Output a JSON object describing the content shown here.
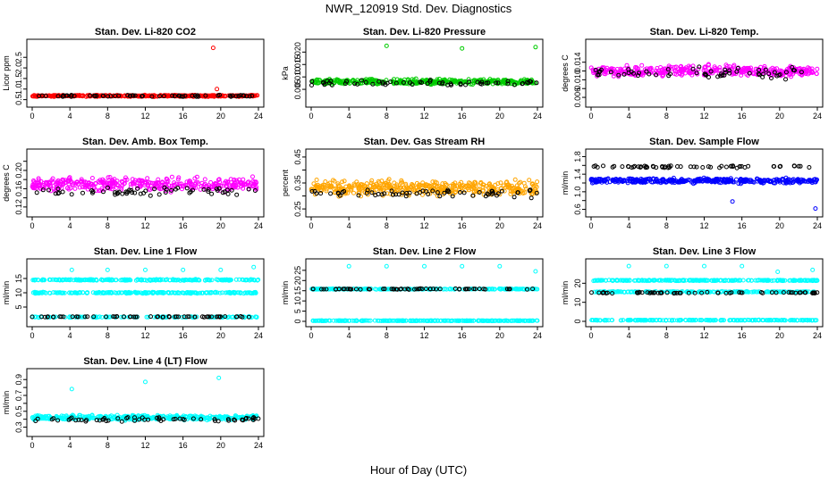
{
  "figure": {
    "title": "NWR_120919 Std. Dev. Diagnostics",
    "xlabel": "Hour of Day (UTC)"
  },
  "colors": {
    "red": "#ff0000",
    "green": "#00cc00",
    "magenta": "#ff00ff",
    "orange": "#ffa500",
    "blue": "#0000ff",
    "cyan": "#00ffff",
    "black": "#000000"
  },
  "chart_data": [
    {
      "type": "scatter",
      "title": "Stan. Dev. Li-820 CO2",
      "ylabel": "Licor ppm",
      "xlim": [
        0,
        24
      ],
      "ylim": [
        0.4,
        3.1
      ],
      "xticks": [
        0,
        4,
        8,
        12,
        16,
        20,
        24
      ],
      "yticks": [
        0.5,
        1.0,
        1.5,
        2.0,
        2.5
      ],
      "ytick_labels": [
        "0.5",
        "1.0",
        "1.5",
        "2.0",
        "2.5"
      ],
      "series": [
        {
          "color": "red",
          "base": 0.68,
          "spread": 0.05,
          "count": 380,
          "outliers": [
            [
              19.2,
              2.95
            ],
            [
              19.6,
              1.0
            ]
          ]
        },
        {
          "color": "black",
          "base": 0.68,
          "spread": 0.05,
          "count": 60,
          "outliers": []
        }
      ]
    },
    {
      "type": "scatter",
      "title": "Stan. Dev. Li-820 Pressure",
      "ylabel": "kPa",
      "xlim": [
        0,
        24
      ],
      "ylim": [
        0.0,
        0.023
      ],
      "xticks": [
        0,
        4,
        8,
        12,
        16,
        20,
        24
      ],
      "yticks": [
        0.005,
        0.01,
        0.015,
        0.02
      ],
      "ytick_labels": [
        "0.005",
        "0.010",
        "0.015",
        "0.020"
      ],
      "series": [
        {
          "color": "green",
          "base": 0.008,
          "spread": 0.0015,
          "count": 380,
          "outliers": [
            [
              8.0,
              0.0225
            ],
            [
              16.0,
              0.0215
            ],
            [
              23.8,
              0.022
            ]
          ]
        },
        {
          "color": "black",
          "base": 0.0075,
          "spread": 0.0015,
          "count": 60,
          "outliers": []
        }
      ]
    },
    {
      "type": "scatter",
      "title": "Stan. Dev. Li-820 Temp.",
      "ylabel": "degrees C",
      "xlim": [
        0,
        24
      ],
      "ylim": [
        0.005,
        0.018
      ],
      "xticks": [
        0,
        4,
        8,
        12,
        16,
        20,
        24
      ],
      "yticks": [
        0.006,
        0.008,
        0.01,
        0.012,
        0.014
      ],
      "ytick_labels": [
        "0.006",
        "",
        "0.010",
        "",
        "0.014"
      ],
      "series": [
        {
          "color": "magenta",
          "base": 0.012,
          "spread": 0.0018,
          "count": 380,
          "outliers": []
        },
        {
          "color": "black",
          "base": 0.0115,
          "spread": 0.0018,
          "count": 60,
          "outliers": []
        }
      ]
    },
    {
      "type": "scatter",
      "title": "Stan. Dev. Amb. Box Temp.",
      "ylabel": "degrees C",
      "xlim": [
        0,
        24
      ],
      "ylim": [
        0.11,
        0.235
      ],
      "xticks": [
        0,
        4,
        8,
        12,
        16,
        20,
        24
      ],
      "yticks": [
        0.12,
        0.14,
        0.16,
        0.18,
        0.2,
        0.22
      ],
      "ytick_labels": [
        "0.12",
        "",
        "0.16",
        "",
        "0.20",
        ""
      ],
      "series": [
        {
          "color": "magenta",
          "base": 0.17,
          "spread": 0.02,
          "count": 380,
          "outliers": []
        },
        {
          "color": "black",
          "base": 0.155,
          "spread": 0.015,
          "count": 60,
          "outliers": []
        }
      ]
    },
    {
      "type": "scatter",
      "title": "Stan. Dev. Gas Stream RH",
      "ylabel": "percent",
      "xlim": [
        0,
        24
      ],
      "ylim": [
        0.24,
        0.46
      ],
      "xticks": [
        0,
        4,
        8,
        12,
        16,
        20,
        24
      ],
      "yticks": [
        0.25,
        0.3,
        0.35,
        0.4,
        0.45
      ],
      "ytick_labels": [
        "0.25",
        "",
        "0.35",
        "",
        "0.45"
      ],
      "series": [
        {
          "color": "orange",
          "base": 0.33,
          "spread": 0.04,
          "count": 420,
          "outliers": []
        },
        {
          "color": "black",
          "base": 0.31,
          "spread": 0.025,
          "count": 60,
          "outliers": []
        }
      ]
    },
    {
      "type": "scatter",
      "title": "Stan. Dev. Sample Flow",
      "ylabel": "ml/min",
      "xlim": [
        0,
        24
      ],
      "ylim": [
        0.55,
        1.85
      ],
      "xticks": [
        0,
        4,
        8,
        12,
        16,
        20,
        24
      ],
      "yticks": [
        0.6,
        0.8,
        1.0,
        1.2,
        1.4,
        1.6,
        1.8
      ],
      "ytick_labels": [
        "0.6",
        "",
        "1.0",
        "",
        "1.4",
        "",
        "1.8"
      ],
      "series": [
        {
          "color": "blue",
          "base": 1.25,
          "spread": 0.08,
          "count": 380,
          "outliers": [
            [
              15.0,
              0.78
            ],
            [
              23.8,
              0.62
            ]
          ]
        },
        {
          "color": "black",
          "base": 1.57,
          "spread": 0.04,
          "count": 60,
          "outliers": []
        }
      ]
    },
    {
      "type": "scatter",
      "title": "Stan. Dev. Line 1 Flow",
      "ylabel": "ml/min",
      "xlim": [
        0,
        24
      ],
      "ylim": [
        0,
        20
      ],
      "xticks": [
        0,
        4,
        8,
        12,
        16,
        20,
        24
      ],
      "yticks": [
        5,
        10,
        15
      ],
      "ytick_labels": [
        "5",
        "10",
        "15"
      ],
      "series": [
        {
          "color": "cyan",
          "base": 14.5,
          "spread": 0.3,
          "count": 240,
          "outliers": [
            [
              4.2,
              18.0
            ],
            [
              8.0,
              18.0
            ],
            [
              12.0,
              18.0
            ],
            [
              16.0,
              18.0
            ],
            [
              20.0,
              18.0
            ],
            [
              23.5,
              19.0
            ]
          ]
        },
        {
          "color": "cyan",
          "base": 10.0,
          "spread": 0.3,
          "count": 240,
          "outliers": []
        },
        {
          "color": "cyan",
          "base": 1.5,
          "spread": 0.25,
          "count": 120,
          "outliers": []
        },
        {
          "color": "black",
          "base": 1.6,
          "spread": 0.2,
          "count": 60,
          "outliers": []
        }
      ]
    },
    {
      "type": "scatter",
      "title": "Stan. Dev. Line 2 Flow",
      "ylabel": "ml/min",
      "xlim": [
        0,
        24
      ],
      "ylim": [
        0,
        28
      ],
      "xticks": [
        0,
        4,
        8,
        12,
        16,
        20,
        24
      ],
      "yticks": [
        0,
        5,
        10,
        15,
        20,
        25
      ],
      "ytick_labels": [
        "0",
        "5",
        "10",
        "15",
        "20",
        "25"
      ],
      "series": [
        {
          "color": "cyan",
          "base": 15.8,
          "spread": 0.25,
          "count": 240,
          "outliers": [
            [
              4.0,
              27.0
            ],
            [
              8.0,
              27.0
            ],
            [
              12.0,
              27.0
            ],
            [
              16.0,
              27.0
            ],
            [
              20.0,
              27.0
            ],
            [
              23.8,
              24.5
            ]
          ]
        },
        {
          "color": "cyan",
          "base": 0.3,
          "spread": 0.15,
          "count": 240,
          "outliers": []
        },
        {
          "color": "black",
          "base": 15.8,
          "spread": 0.3,
          "count": 60,
          "outliers": []
        }
      ]
    },
    {
      "type": "scatter",
      "title": "Stan. Dev. Line 3 Flow",
      "ylabel": "ml/min",
      "xlim": [
        0,
        24
      ],
      "ylim": [
        0,
        30
      ],
      "xticks": [
        0,
        4,
        8,
        12,
        16,
        20,
        24
      ],
      "yticks": [
        0,
        10,
        20
      ],
      "ytick_labels": [
        "0",
        "10",
        "20"
      ],
      "series": [
        {
          "color": "cyan",
          "base": 21.5,
          "spread": 0.3,
          "count": 240,
          "outliers": [
            [
              4.0,
              29.0
            ],
            [
              8.0,
              29.0
            ],
            [
              12.0,
              29.0
            ],
            [
              16.0,
              29.0
            ],
            [
              19.8,
              26.0
            ],
            [
              23.5,
              27.0
            ]
          ]
        },
        {
          "color": "cyan",
          "base": 15.5,
          "spread": 0.3,
          "count": 200,
          "outliers": []
        },
        {
          "color": "cyan",
          "base": 0.6,
          "spread": 0.2,
          "count": 200,
          "outliers": []
        },
        {
          "color": "black",
          "base": 15.0,
          "spread": 0.4,
          "count": 60,
          "outliers": []
        }
      ]
    },
    {
      "type": "scatter",
      "title": "Stan. Dev. Line 4 (LT) Flow",
      "ylabel": "ml/min",
      "xlim": [
        0,
        24
      ],
      "ylim": [
        0.25,
        0.97
      ],
      "xticks": [
        0,
        4,
        8,
        12,
        16,
        20,
        24
      ],
      "yticks": [
        0.3,
        0.4,
        0.5,
        0.6,
        0.7,
        0.8,
        0.9
      ],
      "ytick_labels": [
        "0.3",
        "",
        "0.5",
        "",
        "0.7",
        "",
        "0.9"
      ],
      "series": [
        {
          "color": "cyan",
          "base": 0.42,
          "spread": 0.04,
          "count": 380,
          "outliers": [
            [
              4.2,
              0.78
            ],
            [
              12.0,
              0.87
            ],
            [
              19.8,
              0.92
            ]
          ]
        },
        {
          "color": "black",
          "base": 0.4,
          "spread": 0.04,
          "count": 60,
          "outliers": []
        }
      ]
    }
  ]
}
